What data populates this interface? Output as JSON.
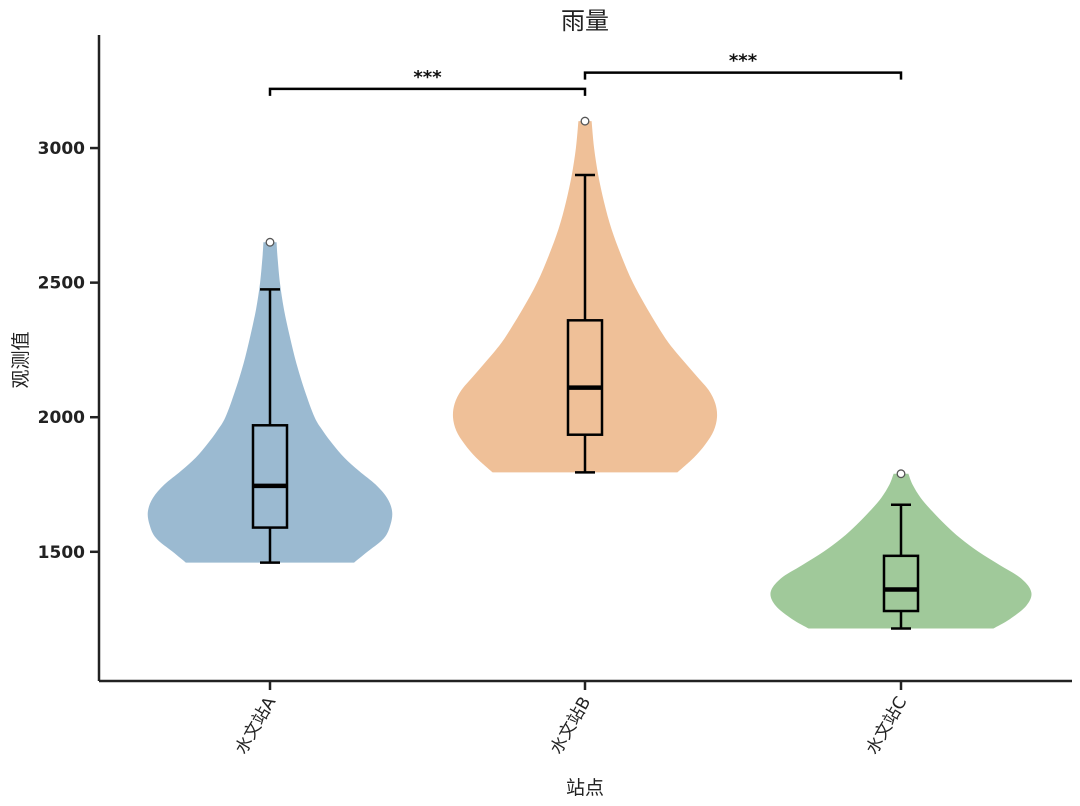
{
  "chart_data": {
    "type": "violin",
    "title": "雨量",
    "xlabel": "站点",
    "ylabel": "观测值",
    "categories": [
      "水文站A",
      "水文站B",
      "水文站C"
    ],
    "ylim": [
      1020,
      3420
    ],
    "yticks": [
      1500,
      2000,
      2500,
      3000
    ],
    "grid": false,
    "series": [
      {
        "category": "水文站A",
        "color": "#9bbad1",
        "min": 1460,
        "q1": 1590,
        "median": 1745,
        "q3": 1970,
        "max": 2650,
        "whisker_low": 1460,
        "whisker_high": 2475,
        "outliers": [
          2650
        ],
        "density": [
          [
            1460,
            0.51
          ],
          [
            1500,
            0.59
          ],
          [
            1550,
            0.69
          ],
          [
            1600,
            0.73
          ],
          [
            1650,
            0.74
          ],
          [
            1700,
            0.71
          ],
          [
            1750,
            0.64
          ],
          [
            1800,
            0.54
          ],
          [
            1850,
            0.45
          ],
          [
            1900,
            0.38
          ],
          [
            1950,
            0.32
          ],
          [
            2000,
            0.27
          ],
          [
            2100,
            0.21
          ],
          [
            2200,
            0.16
          ],
          [
            2300,
            0.12
          ],
          [
            2400,
            0.085
          ],
          [
            2500,
            0.06
          ],
          [
            2600,
            0.045
          ],
          [
            2650,
            0.04
          ]
        ]
      },
      {
        "category": "水文站B",
        "color": "#efc098",
        "min": 1795,
        "q1": 1935,
        "median": 2110,
        "q3": 2360,
        "max": 3100,
        "whisker_low": 1795,
        "whisker_high": 2900,
        "outliers": [
          3100
        ],
        "density": [
          [
            1795,
            0.56
          ],
          [
            1850,
            0.66
          ],
          [
            1900,
            0.73
          ],
          [
            1950,
            0.78
          ],
          [
            2000,
            0.8
          ],
          [
            2050,
            0.79
          ],
          [
            2100,
            0.75
          ],
          [
            2150,
            0.68
          ],
          [
            2200,
            0.61
          ],
          [
            2250,
            0.54
          ],
          [
            2300,
            0.48
          ],
          [
            2400,
            0.38
          ],
          [
            2500,
            0.29
          ],
          [
            2600,
            0.22
          ],
          [
            2700,
            0.16
          ],
          [
            2800,
            0.115
          ],
          [
            2900,
            0.08
          ],
          [
            3000,
            0.055
          ],
          [
            3100,
            0.04
          ]
        ]
      },
      {
        "category": "水文站C",
        "color": "#a0c99a",
        "min": 1215,
        "q1": 1280,
        "median": 1360,
        "q3": 1485,
        "max": 1790,
        "whisker_low": 1215,
        "whisker_high": 1675,
        "outliers": [
          1790
        ],
        "density": [
          [
            1215,
            0.56
          ],
          [
            1250,
            0.66
          ],
          [
            1300,
            0.76
          ],
          [
            1350,
            0.79
          ],
          [
            1400,
            0.73
          ],
          [
            1450,
            0.6
          ],
          [
            1500,
            0.47
          ],
          [
            1550,
            0.36
          ],
          [
            1600,
            0.27
          ],
          [
            1650,
            0.19
          ],
          [
            1700,
            0.12
          ],
          [
            1750,
            0.07
          ],
          [
            1790,
            0.045
          ]
        ]
      }
    ],
    "significance": [
      {
        "from": "水文站A",
        "to": "水文站B",
        "label": "***",
        "level": 3220
      },
      {
        "from": "水文站B",
        "to": "水文站C",
        "label": "***",
        "level": 3280
      }
    ]
  }
}
